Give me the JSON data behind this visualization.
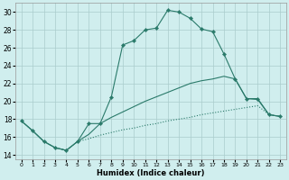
{
  "xlabel": "Humidex (Indice chaleur)",
  "bg_color": "#d0eeee",
  "grid_color": "#aacccc",
  "line_color": "#2a7a6a",
  "xlim": [
    -0.5,
    23.5
  ],
  "ylim": [
    13.5,
    31.0
  ],
  "xticks": [
    0,
    1,
    2,
    3,
    4,
    5,
    6,
    7,
    8,
    9,
    10,
    11,
    12,
    13,
    14,
    15,
    16,
    17,
    18,
    19,
    20,
    21,
    22,
    23
  ],
  "yticks": [
    14,
    16,
    18,
    20,
    22,
    24,
    26,
    28,
    30
  ],
  "line1_x": [
    0,
    1,
    2,
    3,
    4,
    5,
    6,
    7,
    8,
    9,
    10,
    11,
    12,
    13,
    14,
    15,
    16,
    17,
    18,
    19,
    20,
    21,
    22,
    23
  ],
  "line1_y": [
    17.8,
    16.7,
    15.5,
    14.8,
    14.5,
    15.5,
    17.5,
    17.5,
    20.5,
    26.3,
    26.8,
    28.0,
    28.2,
    30.2,
    30.0,
    29.3,
    28.1,
    27.8,
    25.3,
    22.5,
    20.3,
    20.3,
    18.5,
    18.3
  ],
  "line2_x": [
    0,
    1,
    2,
    3,
    4,
    5,
    6,
    7,
    8,
    9,
    10,
    11,
    12,
    13,
    14,
    15,
    16,
    17,
    18,
    19,
    20,
    21,
    22,
    23
  ],
  "line2_y": [
    17.8,
    16.7,
    15.5,
    14.8,
    14.5,
    15.5,
    16.3,
    17.5,
    18.2,
    18.8,
    19.4,
    20.0,
    20.5,
    21.0,
    21.5,
    22.0,
    22.3,
    22.5,
    22.8,
    22.5,
    20.3,
    20.2,
    18.5,
    18.3
  ],
  "line3_x": [
    0,
    1,
    2,
    3,
    4,
    5,
    6,
    7,
    8,
    9,
    10,
    11,
    12,
    13,
    14,
    15,
    16,
    17,
    18,
    19,
    20,
    21,
    22,
    23
  ],
  "line3_y": [
    17.8,
    16.7,
    15.5,
    14.8,
    14.5,
    15.5,
    15.8,
    16.2,
    16.5,
    16.8,
    17.0,
    17.3,
    17.5,
    17.8,
    18.0,
    18.2,
    18.5,
    18.7,
    18.9,
    19.1,
    19.3,
    19.5,
    18.5,
    18.3
  ]
}
